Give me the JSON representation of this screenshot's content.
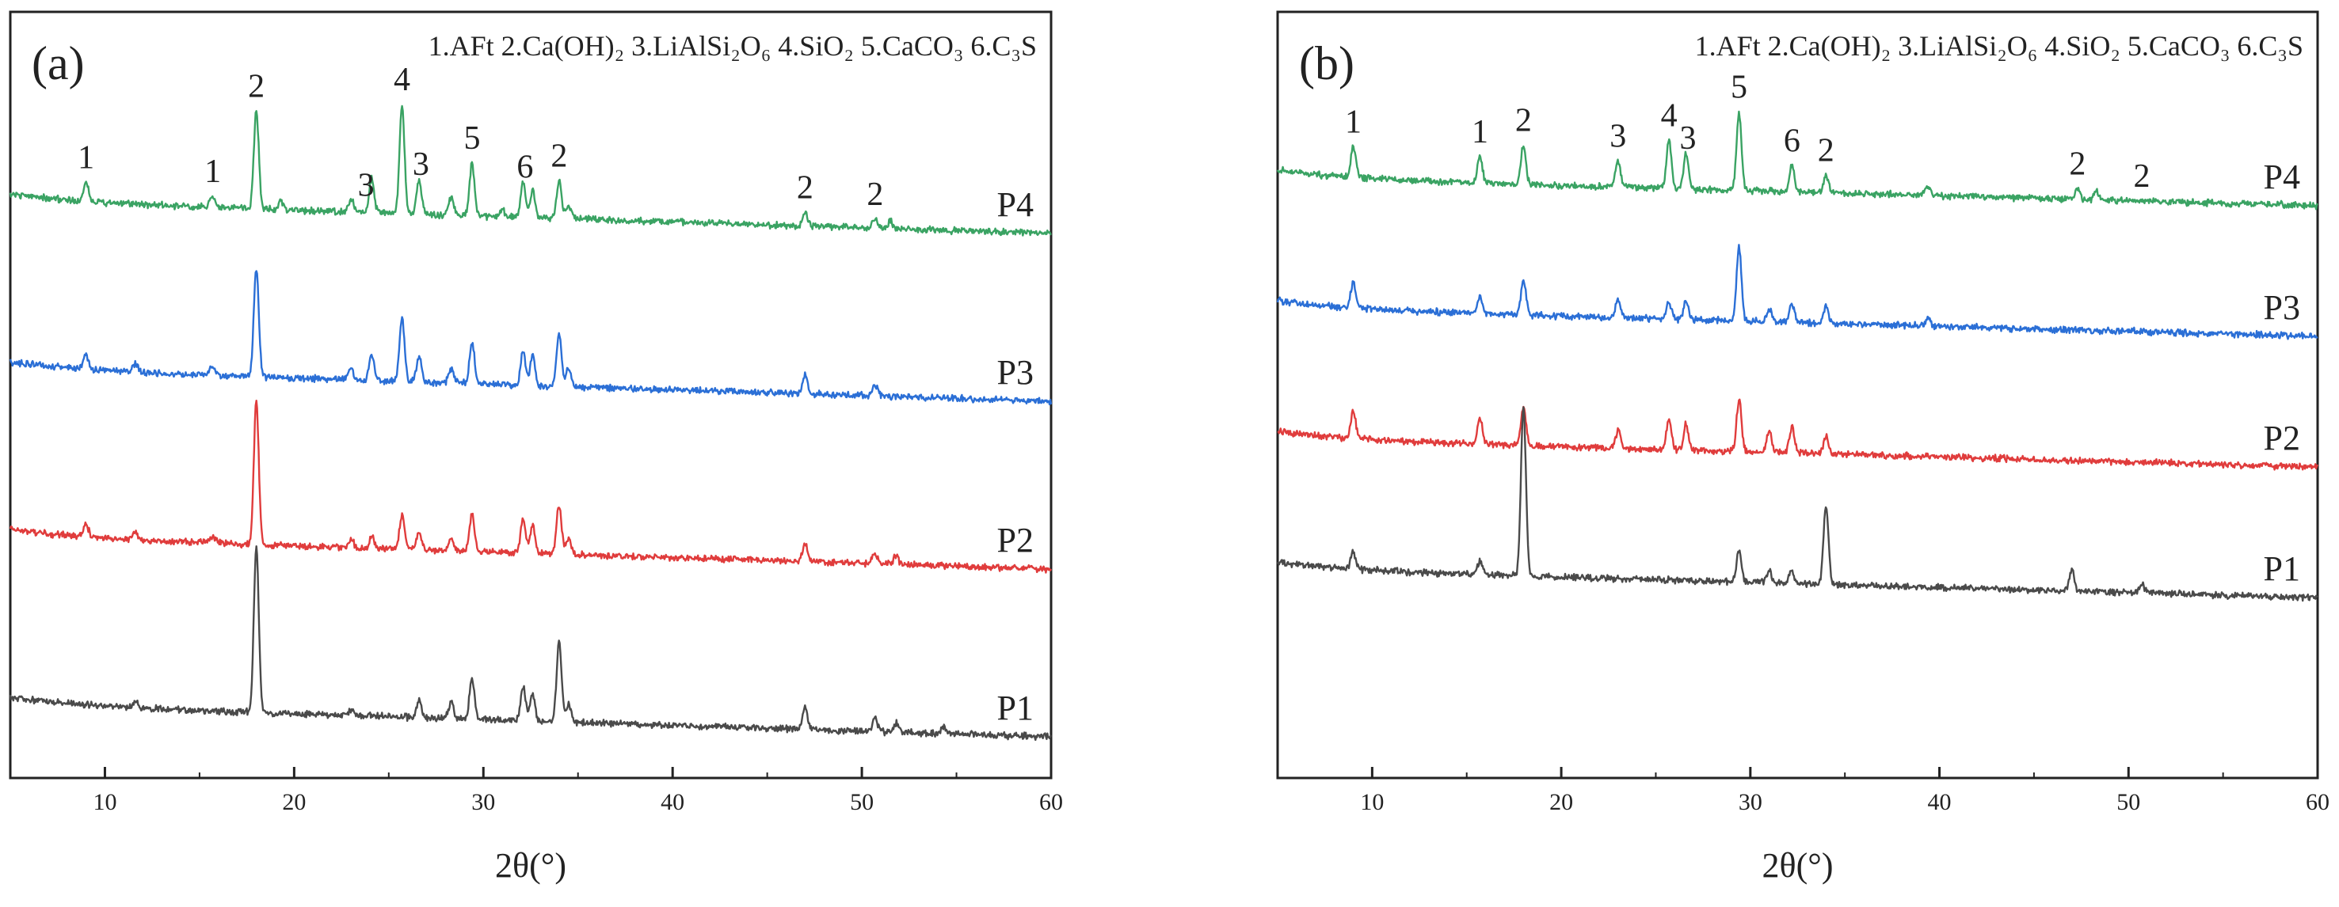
{
  "chart_data": [
    {
      "type": "line",
      "panel_label": "(a)",
      "phase_legend": "1.AFt 2.Ca(OH)₂ 3.LiAlSi₂O₆ 4.SiO₂ 5.CaCO₃ 6.C₃S",
      "xlabel": "2θ(°)",
      "ylabel": "",
      "xlim": [
        5,
        60
      ],
      "x_ticks": [
        "10",
        "20",
        "30",
        "40",
        "50",
        "60"
      ],
      "grid": false,
      "series": [
        {
          "name": "P4",
          "color": "#3aa363",
          "offset": 3,
          "peaks": [
            [
              9.0,
              0.25
            ],
            [
              15.7,
              0.15
            ],
            [
              18.0,
              1.3
            ],
            [
              19.3,
              0.12
            ],
            [
              23.0,
              0.18
            ],
            [
              24.1,
              0.45
            ],
            [
              25.7,
              1.45
            ],
            [
              26.6,
              0.45
            ],
            [
              28.3,
              0.25
            ],
            [
              29.4,
              0.7
            ],
            [
              31.0,
              0.1
            ],
            [
              32.1,
              0.45
            ],
            [
              32.6,
              0.35
            ],
            [
              34.0,
              0.5
            ],
            [
              34.5,
              0.2
            ],
            [
              47.0,
              0.18
            ],
            [
              50.7,
              0.12
            ],
            [
              51.5,
              0.1
            ]
          ],
          "peak_labels": [
            {
              "x": 9.0,
              "text": "1"
            },
            {
              "x": 15.7,
              "text": "1"
            },
            {
              "x": 18.0,
              "text": "2"
            },
            {
              "x": 23.8,
              "text": "3"
            },
            {
              "x": 25.7,
              "text": "4"
            },
            {
              "x": 26.7,
              "text": "3"
            },
            {
              "x": 29.4,
              "text": "5"
            },
            {
              "x": 32.2,
              "text": "6"
            },
            {
              "x": 34.0,
              "text": "2"
            },
            {
              "x": 47.0,
              "text": "2"
            },
            {
              "x": 50.7,
              "text": "2"
            }
          ]
        },
        {
          "name": "P3",
          "color": "#2b6fd6",
          "offset": 2,
          "peaks": [
            [
              9.0,
              0.2
            ],
            [
              11.6,
              0.1
            ],
            [
              15.7,
              0.12
            ],
            [
              18.0,
              1.45
            ],
            [
              23.0,
              0.15
            ],
            [
              24.1,
              0.35
            ],
            [
              25.7,
              0.85
            ],
            [
              26.6,
              0.35
            ],
            [
              28.3,
              0.2
            ],
            [
              29.4,
              0.55
            ],
            [
              32.1,
              0.45
            ],
            [
              32.6,
              0.4
            ],
            [
              34.0,
              0.7
            ],
            [
              34.5,
              0.25
            ],
            [
              47.0,
              0.25
            ],
            [
              50.7,
              0.15
            ]
          ],
          "peak_labels": []
        },
        {
          "name": "P2",
          "color": "#e03c3c",
          "offset": 1,
          "peaks": [
            [
              9.0,
              0.18
            ],
            [
              11.6,
              0.1
            ],
            [
              15.7,
              0.1
            ],
            [
              18.0,
              1.9
            ],
            [
              23.0,
              0.12
            ],
            [
              24.1,
              0.15
            ],
            [
              25.7,
              0.45
            ],
            [
              26.6,
              0.25
            ],
            [
              28.3,
              0.15
            ],
            [
              29.4,
              0.5
            ],
            [
              32.1,
              0.45
            ],
            [
              32.6,
              0.35
            ],
            [
              34.0,
              0.65
            ],
            [
              34.5,
              0.2
            ],
            [
              47.0,
              0.25
            ],
            [
              50.7,
              0.15
            ],
            [
              51.8,
              0.12
            ]
          ],
          "peak_labels": []
        },
        {
          "name": "P1",
          "color": "#4a4a4a",
          "offset": 0,
          "peaks": [
            [
              11.6,
              0.08
            ],
            [
              18.0,
              2.2
            ],
            [
              23.0,
              0.08
            ],
            [
              26.6,
              0.25
            ],
            [
              28.3,
              0.22
            ],
            [
              29.4,
              0.55
            ],
            [
              32.1,
              0.45
            ],
            [
              32.6,
              0.35
            ],
            [
              34.0,
              1.05
            ],
            [
              34.5,
              0.25
            ],
            [
              47.0,
              0.3
            ],
            [
              50.7,
              0.18
            ],
            [
              51.8,
              0.12
            ],
            [
              54.3,
              0.08
            ]
          ],
          "peak_labels": []
        }
      ]
    },
    {
      "type": "line",
      "panel_label": "(b)",
      "phase_legend": "1.AFt 2.Ca(OH)₂ 3.LiAlSi₂O₆ 4.SiO₂ 5.CaCO₃ 6.C₃S",
      "xlabel": "2θ(°)",
      "ylabel": "",
      "xlim": [
        5,
        60
      ],
      "x_ticks": [
        "10",
        "20",
        "30",
        "40",
        "50",
        "60"
      ],
      "grid": false,
      "series": [
        {
          "name": "P4",
          "color": "#3aa363",
          "offset": 3,
          "peaks": [
            [
              9.0,
              0.35
            ],
            [
              15.7,
              0.3
            ],
            [
              18.0,
              0.45
            ],
            [
              23.0,
              0.3
            ],
            [
              25.7,
              0.55
            ],
            [
              26.6,
              0.4
            ],
            [
              29.4,
              0.9
            ],
            [
              32.2,
              0.3
            ],
            [
              34.0,
              0.2
            ],
            [
              39.4,
              0.1
            ],
            [
              47.3,
              0.12
            ],
            [
              48.3,
              0.1
            ]
          ],
          "peak_labels": [
            {
              "x": 9.0,
              "text": "1"
            },
            {
              "x": 15.7,
              "text": "1"
            },
            {
              "x": 18.0,
              "text": "2"
            },
            {
              "x": 23.0,
              "text": "3"
            },
            {
              "x": 25.7,
              "text": "4"
            },
            {
              "x": 26.7,
              "text": "3"
            },
            {
              "x": 29.4,
              "text": "5"
            },
            {
              "x": 32.2,
              "text": "6"
            },
            {
              "x": 34.0,
              "text": "2"
            },
            {
              "x": 47.3,
              "text": "2"
            },
            {
              "x": 50.7,
              "text": "2"
            }
          ]
        },
        {
          "name": "P3",
          "color": "#2b6fd6",
          "offset": 2,
          "peaks": [
            [
              9.0,
              0.3
            ],
            [
              15.7,
              0.2
            ],
            [
              18.0,
              0.4
            ],
            [
              23.0,
              0.2
            ],
            [
              25.7,
              0.2
            ],
            [
              26.6,
              0.2
            ],
            [
              29.4,
              0.85
            ],
            [
              31.0,
              0.15
            ],
            [
              32.2,
              0.2
            ],
            [
              34.0,
              0.2
            ],
            [
              39.4,
              0.1
            ]
          ],
          "peak_labels": []
        },
        {
          "name": "P2",
          "color": "#e03c3c",
          "offset": 1,
          "peaks": [
            [
              9.0,
              0.3
            ],
            [
              15.7,
              0.3
            ],
            [
              18.0,
              0.45
            ],
            [
              23.0,
              0.2
            ],
            [
              25.7,
              0.35
            ],
            [
              26.6,
              0.3
            ],
            [
              29.4,
              0.6
            ],
            [
              31.0,
              0.25
            ],
            [
              32.2,
              0.3
            ],
            [
              34.0,
              0.2
            ]
          ],
          "peak_labels": []
        },
        {
          "name": "P1",
          "color": "#4a4a4a",
          "offset": 0,
          "peaks": [
            [
              9.0,
              0.2
            ],
            [
              15.7,
              0.15
            ],
            [
              18.0,
              1.95
            ],
            [
              29.4,
              0.35
            ],
            [
              31.0,
              0.15
            ],
            [
              32.2,
              0.15
            ],
            [
              34.0,
              0.9
            ],
            [
              47.0,
              0.25
            ],
            [
              50.7,
              0.12
            ]
          ],
          "peak_labels": []
        }
      ]
    }
  ]
}
